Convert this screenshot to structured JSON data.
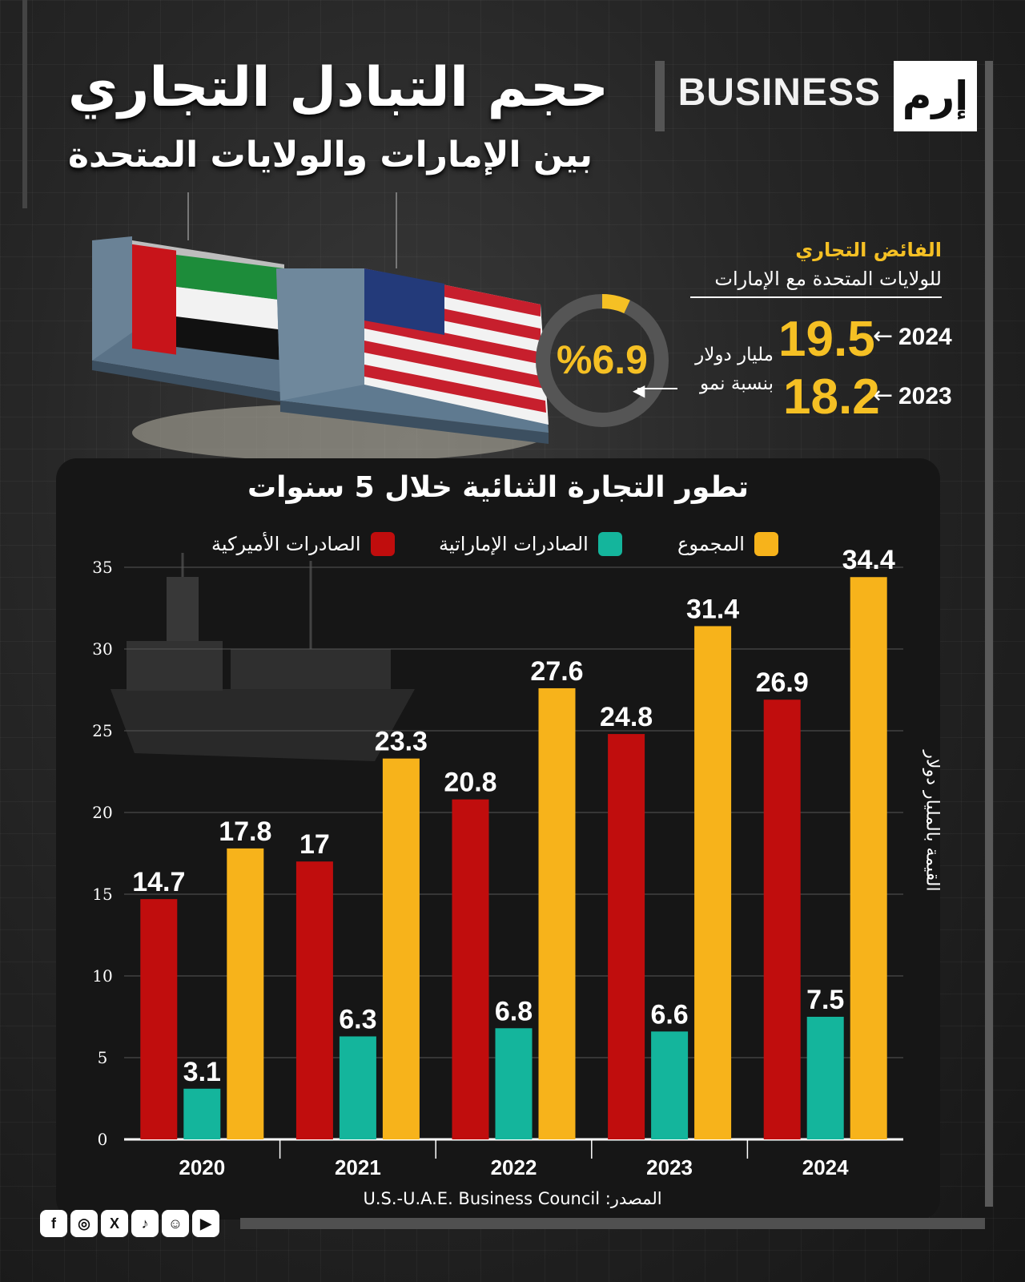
{
  "brand": {
    "logo_mark": "إرم",
    "logo_text": "BUSINESS"
  },
  "title": {
    "main": "حجم التبادل التجاري",
    "sub": "بين الإمارات والولايات المتحدة"
  },
  "surplus": {
    "title": "الفائض التجاري",
    "subtitle": "للولايات المتحدة مع الإمارات",
    "rows": [
      {
        "year": "2024",
        "value": "19.5"
      },
      {
        "year": "2023",
        "value": "18.2"
      }
    ],
    "unit": "مليار دولار",
    "growth_label": "بنسبة نمو",
    "growth_value": "%6.9",
    "growth_fraction": 0.069,
    "arrow": "←"
  },
  "chart_data": {
    "type": "bar",
    "title": "تطور التجارة الثنائية خلال 5 سنوات",
    "ylabel": "القيمة بالمليار دولار",
    "ylim": [
      0,
      35
    ],
    "yticks": [
      "0",
      "5",
      "10",
      "15",
      "20",
      "25",
      "30",
      "35"
    ],
    "grid": true,
    "categories": [
      "2020",
      "2021",
      "2022",
      "2023",
      "2024"
    ],
    "series": [
      {
        "name": "الصادرات الأميركية",
        "color": "#c00d0d",
        "values": [
          14.7,
          17,
          20.8,
          24.8,
          26.9
        ],
        "labels": [
          "14.7",
          "17",
          "20.8",
          "24.8",
          "26.9"
        ]
      },
      {
        "name": "الصادرات الإماراتية",
        "color": "#14b59c",
        "values": [
          3.1,
          6.3,
          6.8,
          6.6,
          7.5
        ],
        "labels": [
          "3.1",
          "6.3",
          "6.8",
          "6.6",
          "7.5"
        ]
      },
      {
        "name": "المجموع",
        "color": "#f7b31b",
        "values": [
          17.8,
          23.3,
          27.6,
          31.4,
          34.4
        ],
        "labels": [
          "17.8",
          "23.3",
          "27.6",
          "31.4",
          "34.4"
        ]
      }
    ]
  },
  "source": "U.S.-U.A.E. Business Council :المصدر",
  "social": [
    "facebook-icon",
    "instagram-icon",
    "x-icon",
    "tiktok-icon",
    "snapchat-icon",
    "youtube-icon"
  ]
}
